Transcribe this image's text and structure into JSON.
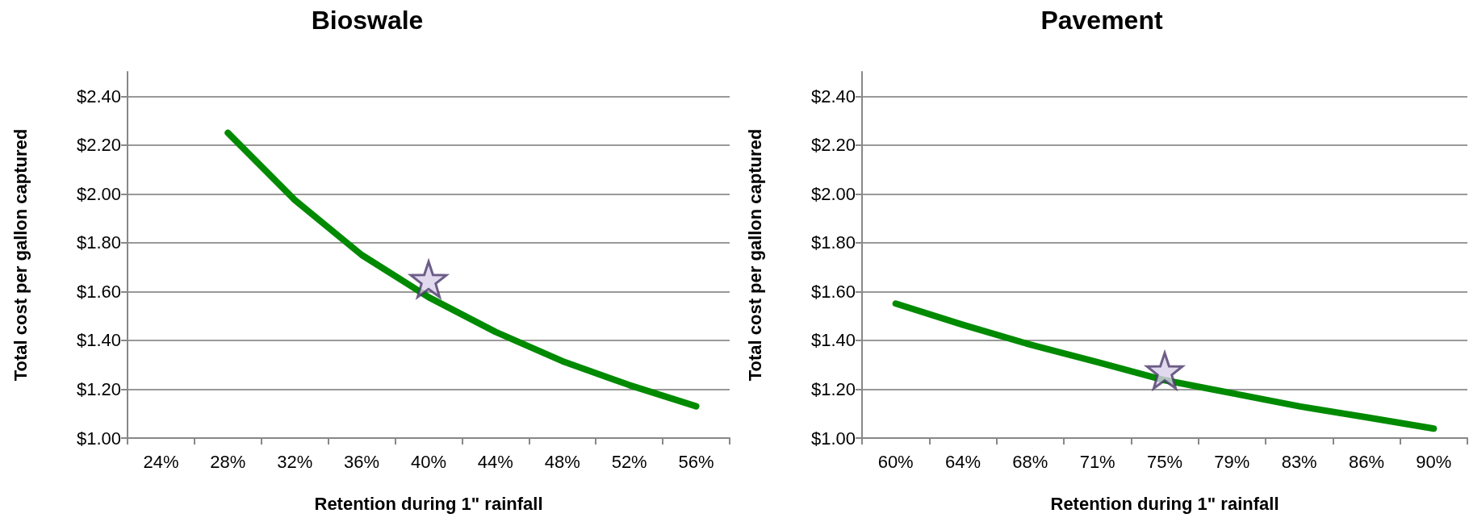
{
  "chart_data": [
    {
      "type": "line",
      "title": "Bioswale",
      "xlabel": "Retention during 1\" rainfall",
      "ylabel": "Total cost per gallon captured",
      "categories": [
        "24%",
        "28%",
        "32%",
        "36%",
        "40%",
        "44%",
        "48%",
        "52%",
        "56%"
      ],
      "series": [
        {
          "color": "#008a00",
          "values": [
            null,
            2.25,
            1.975,
            1.75,
            1.577,
            1.435,
            1.315,
            1.217,
            1.13
          ]
        },
        {
          "type": "scatter",
          "marker": "star",
          "color": "#d9d0e8",
          "x": [
            "40%"
          ],
          "values": [
            1.65
          ]
        }
      ],
      "ylim": [
        1.0,
        2.5
      ],
      "yticks": [
        {
          "value": 1.0,
          "label": "$1.00"
        },
        {
          "value": 1.2,
          "label": "$1.20"
        },
        {
          "value": 1.4,
          "label": "$1.40"
        },
        {
          "value": 1.6,
          "label": "$1.60"
        },
        {
          "value": 1.8,
          "label": "$1.80"
        },
        {
          "value": 2.0,
          "label": "$2.00"
        },
        {
          "value": 2.2,
          "label": "$2.20"
        },
        {
          "value": 2.4,
          "label": "$2.40"
        }
      ],
      "grid": "y",
      "marker": "none",
      "line_style": "solid"
    },
    {
      "type": "line",
      "title": "Pavement",
      "xlabel": "Retention during 1\" rainfall",
      "ylabel": "Total cost per gallon captured",
      "categories": [
        "60%",
        "64%",
        "68%",
        "71%",
        "75%",
        "79%",
        "83%",
        "86%",
        "90%"
      ],
      "series": [
        {
          "color": "#008a00",
          "values": [
            1.551,
            1.464,
            1.383,
            1.311,
            1.237,
            1.184,
            1.13,
            1.085,
            1.039
          ]
        },
        {
          "type": "scatter",
          "marker": "star",
          "color": "#d9d0e8",
          "x": [
            "75%"
          ],
          "values": [
            1.276
          ]
        }
      ],
      "ylim": [
        1.0,
        2.5
      ],
      "yticks": [
        {
          "value": 1.0,
          "label": "$1.00"
        },
        {
          "value": 1.2,
          "label": "$1.20"
        },
        {
          "value": 1.4,
          "label": "$1.40"
        },
        {
          "value": 1.6,
          "label": "$1.60"
        },
        {
          "value": 1.8,
          "label": "$1.80"
        },
        {
          "value": 2.0,
          "label": "$2.00"
        },
        {
          "value": 2.2,
          "label": "$2.20"
        },
        {
          "value": 2.4,
          "label": "$2.40"
        }
      ],
      "grid": "y",
      "marker": "none",
      "line_style": "solid"
    }
  ]
}
